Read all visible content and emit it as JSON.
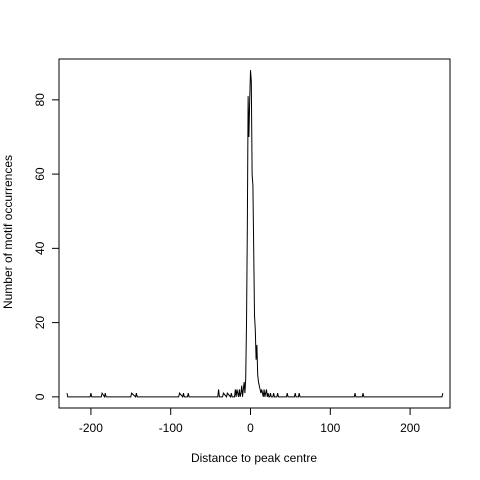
{
  "chart_data": {
    "type": "line",
    "title": "",
    "xlabel": "Distance to peak centre",
    "ylabel": "Number of motif occurrences",
    "xlim": [
      -240,
      250
    ],
    "ylim": [
      -3,
      91
    ],
    "x_ticks": [
      -200,
      -100,
      0,
      100,
      200
    ],
    "y_ticks": [
      0,
      20,
      40,
      60,
      80
    ],
    "x_tick_labels": [
      "-200",
      "-100",
      "0",
      "100",
      "200"
    ],
    "y_tick_labels": [
      "0",
      "20",
      "40",
      "60",
      "80"
    ],
    "grid": false,
    "legend": "none",
    "line_color": "#000000",
    "series": [
      {
        "x": [
          -230,
          -229,
          -201,
          -200,
          -199,
          -187,
          -186,
          -183,
          -182,
          -181,
          -150,
          -149,
          -144,
          -143,
          -142,
          -90,
          -89,
          -85,
          -84,
          -83,
          -79,
          -78,
          -77,
          -41,
          -40,
          -39,
          -35,
          -34,
          -30,
          -29,
          -25,
          -24,
          -23,
          -20,
          -19,
          -18,
          -17,
          -15,
          -14,
          -13,
          -12,
          -11,
          -10,
          -9,
          -8,
          -7,
          -6,
          -5,
          -4,
          -3,
          -2,
          -1,
          0,
          1,
          2,
          3,
          4,
          5,
          6,
          7,
          8,
          9,
          10,
          11,
          12,
          13,
          14,
          15,
          16,
          17,
          18,
          19,
          20,
          21,
          22,
          23,
          24,
          25,
          26,
          27,
          28,
          29,
          30,
          33,
          34,
          35,
          45,
          46,
          47,
          55,
          56,
          57,
          60,
          61,
          62,
          130,
          131,
          132,
          140,
          141,
          142,
          240,
          241
        ],
        "y": [
          1,
          0,
          0,
          1,
          0,
          0,
          1,
          0,
          1,
          0,
          0,
          1,
          0,
          1,
          0,
          0,
          1,
          0,
          1,
          0,
          0,
          1,
          0,
          0,
          2,
          0,
          0,
          1,
          0,
          1,
          0,
          1,
          0,
          0,
          2,
          0,
          2,
          0,
          2,
          0,
          1,
          3,
          0,
          2,
          4,
          1,
          5,
          20,
          45,
          81,
          70,
          80,
          88,
          85,
          60,
          57,
          40,
          22,
          18,
          10,
          14,
          6,
          4,
          3,
          2,
          1,
          2,
          1,
          0,
          2,
          0,
          1,
          2,
          0,
          1,
          0,
          0,
          1,
          0,
          0,
          0,
          1,
          0,
          0,
          1,
          0,
          0,
          1,
          0,
          0,
          1,
          0,
          0,
          1,
          0,
          0,
          1,
          0,
          0,
          1,
          0,
          0,
          1
        ]
      }
    ]
  }
}
